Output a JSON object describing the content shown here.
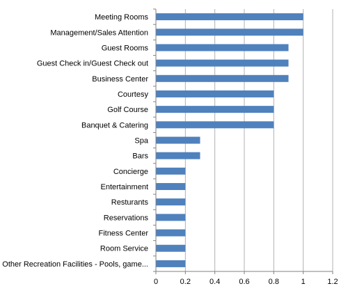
{
  "chart_data": {
    "type": "bar",
    "orientation": "horizontal",
    "categories": [
      "Meeting Rooms",
      "Management/Sales Attention",
      "Guest Rooms",
      "Guest Check in/Guest Check out",
      "Business Center",
      "Courtesy",
      "Golf Course",
      "Banquet & Catering",
      "Spa",
      "Bars",
      "Concierge",
      "Entertainment",
      "Resturants",
      "Reservations",
      "Fitness Center",
      "Room Service",
      "Other Recreation Facilities - Pools, game..."
    ],
    "values": [
      1.0,
      1.0,
      0.9,
      0.9,
      0.9,
      0.8,
      0.8,
      0.8,
      0.3,
      0.3,
      0.2,
      0.2,
      0.2,
      0.2,
      0.2,
      0.2,
      0.2
    ],
    "xlim": [
      0,
      1.2
    ],
    "x_ticks": [
      "0",
      "0.2",
      "0.4",
      "0.6",
      "0.8",
      "1",
      "1.2"
    ],
    "title": "",
    "xlabel": "",
    "ylabel": "",
    "grid": "vertical",
    "legend": "none",
    "bar_color": "#4f81bd",
    "grid_color": "#b0b0b0",
    "axis_color": "#808080"
  }
}
